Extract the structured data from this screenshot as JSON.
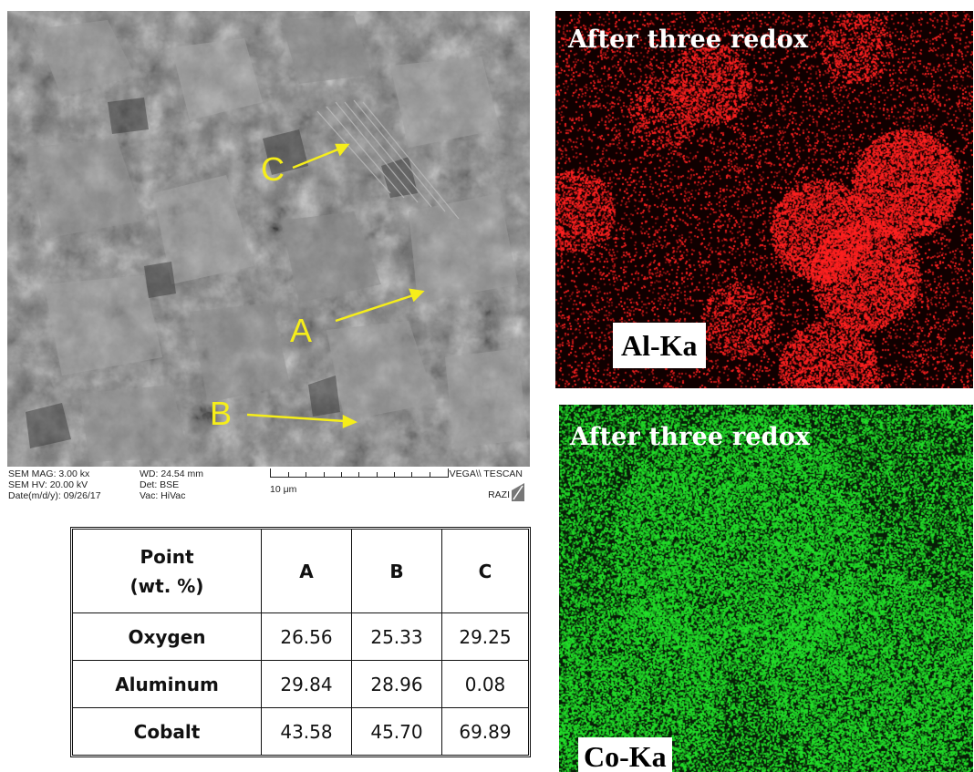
{
  "sem": {
    "point_labels": [
      "C",
      "A",
      "B"
    ],
    "footer": {
      "mag": "SEM MAG: 3.00 kx",
      "hv": "SEM HV: 20.00 kV",
      "date": "Date(m/d/y): 09/26/17",
      "wd": "WD: 24.54 mm",
      "det": "Det: BSE",
      "vac": "Vac: HiVac",
      "scale": "10 μm",
      "instrument": "VEGA\\\\ TESCAN",
      "lab": "RAZI"
    }
  },
  "table": {
    "header": {
      "label_line1": "Point",
      "label_line2": "(wt. %)",
      "cols": [
        "A",
        "B",
        "C"
      ]
    },
    "rows": [
      {
        "label": "Oxygen",
        "values": [
          "26.56",
          "25.33",
          "29.25"
        ]
      },
      {
        "label": "Aluminum",
        "values": [
          "29.84",
          "28.96",
          "0.08"
        ]
      },
      {
        "label": "Cobalt",
        "values": [
          "43.58",
          "45.70",
          "69.89"
        ]
      }
    ]
  },
  "eds_maps": [
    {
      "title": "After three redox",
      "element": "Al-Ka",
      "color": "#ff2020"
    },
    {
      "title": "After three redox",
      "element": "Co-Ka",
      "color": "#22e02a"
    }
  ]
}
